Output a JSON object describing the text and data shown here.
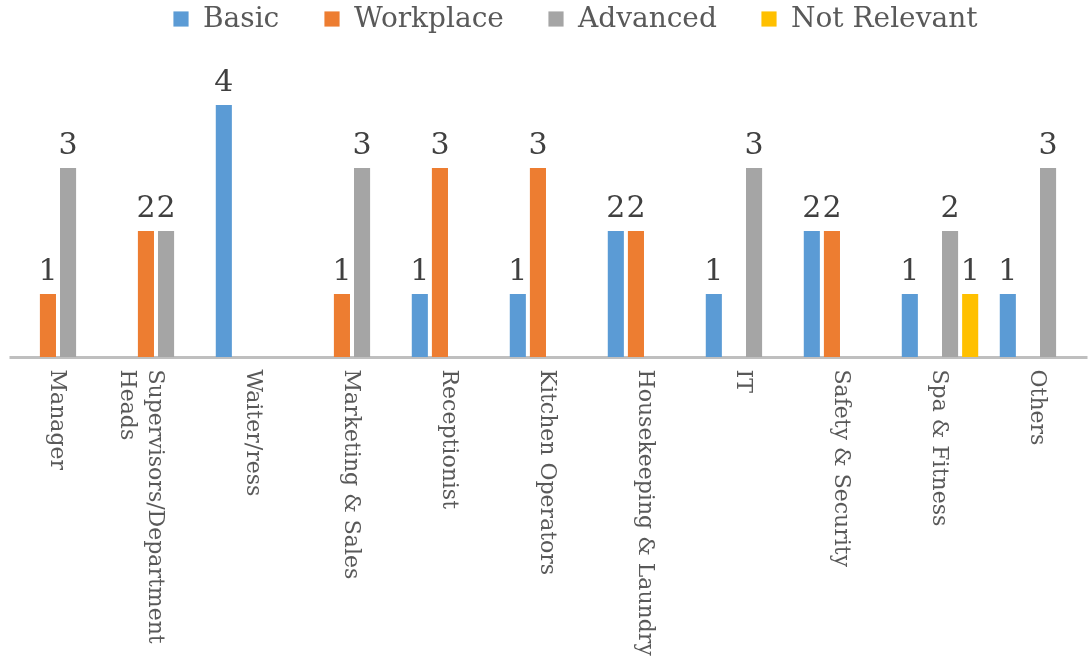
{
  "chart_data": {
    "type": "bar",
    "categories": [
      "Manager",
      "Supervisors/Department Heads",
      "Waiter/ress",
      "Marketing & Sales",
      "Receptionist",
      "Kitchen Operators",
      "Housekeeping  & Laundry",
      "IT",
      "Safety & Security",
      "Spa & Fitness",
      "Others"
    ],
    "series": [
      {
        "name": "Basic",
        "color": "#5b9bd5",
        "values": [
          null,
          null,
          4,
          null,
          1,
          1,
          2,
          1,
          2,
          1,
          1
        ]
      },
      {
        "name": "Workplace",
        "color": "#ed7d31",
        "values": [
          1,
          2,
          null,
          1,
          3,
          3,
          2,
          null,
          2,
          null,
          null
        ]
      },
      {
        "name": "Advanced",
        "color": "#a5a5a5",
        "values": [
          3,
          2,
          null,
          3,
          null,
          null,
          null,
          3,
          null,
          2,
          3
        ]
      },
      {
        "name": "Not Relevant",
        "color": "#ffc000",
        "values": [
          null,
          null,
          null,
          null,
          null,
          null,
          null,
          null,
          null,
          1,
          null
        ]
      }
    ],
    "data_labels": true,
    "legend": "top",
    "tick_labels": "x"
  }
}
